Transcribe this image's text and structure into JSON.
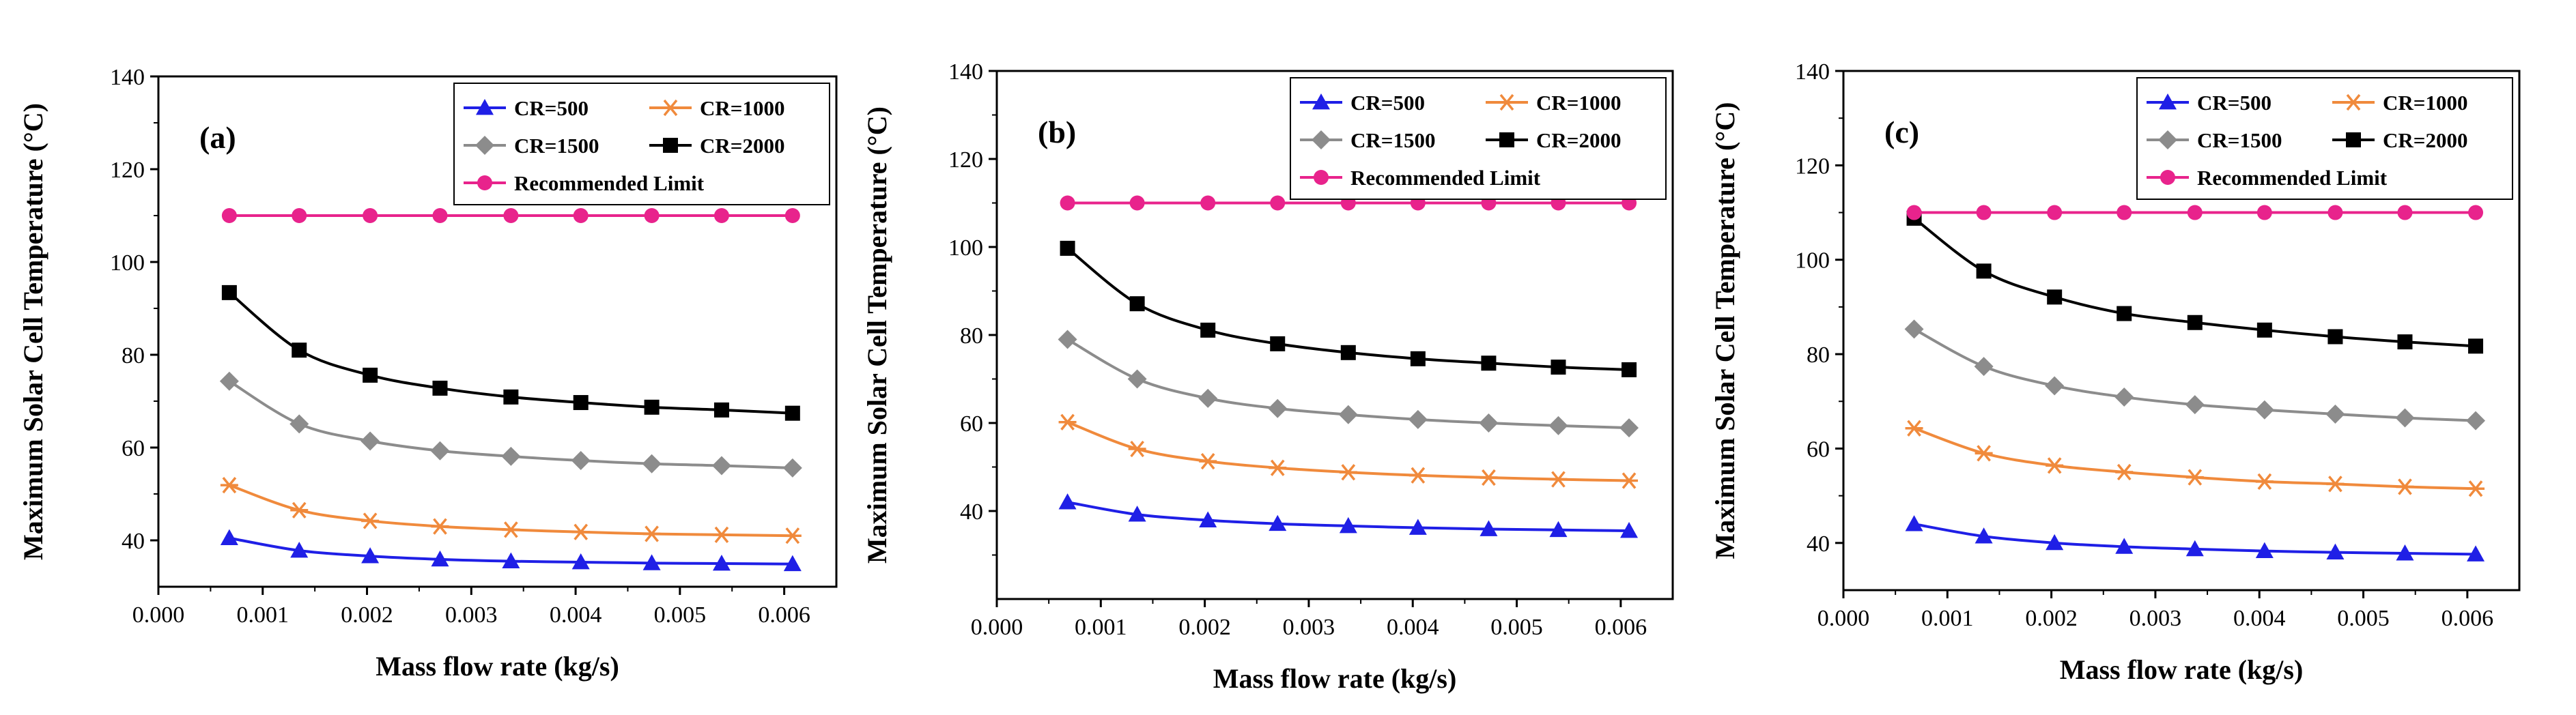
{
  "chart_data": [
    {
      "type": "line",
      "panel_label": "(a)",
      "xlabel": "Mass flow rate (kg/s)",
      "ylabel": "Maximum Solar Cell Temperature (°C)",
      "xlim": [
        0.0,
        0.0065
      ],
      "ylim": [
        30,
        140
      ],
      "xticks": [
        "0.000",
        "0.001",
        "0.002",
        "0.003",
        "0.004",
        "0.005",
        "0.006"
      ],
      "yticks": [
        "40",
        "60",
        "80",
        "100",
        "120",
        "140"
      ],
      "legend_position": "top-right",
      "x": [
        0.00068,
        0.00135,
        0.00203,
        0.0027,
        0.00338,
        0.00405,
        0.00473,
        0.0054,
        0.00608
      ],
      "series": [
        {
          "name": "CR=500",
          "color": "#1f1fe6",
          "marker": "triangle",
          "values": [
            40.5,
            37.8,
            36.6,
            35.9,
            35.5,
            35.3,
            35.1,
            35.0,
            34.9
          ]
        },
        {
          "name": "CR=1000",
          "color": "#f08a3c",
          "marker": "asterisk",
          "values": [
            51.9,
            46.5,
            44.2,
            43.0,
            42.3,
            41.8,
            41.4,
            41.2,
            41.0
          ]
        },
        {
          "name": "CR=1500",
          "color": "#8c8c8c",
          "marker": "diamond",
          "values": [
            74.3,
            65.1,
            61.4,
            59.3,
            58.1,
            57.2,
            56.5,
            56.1,
            55.6
          ]
        },
        {
          "name": "CR=2000",
          "color": "#000000",
          "marker": "square",
          "values": [
            93.4,
            81.0,
            75.6,
            72.8,
            70.9,
            69.7,
            68.7,
            68.1,
            67.4
          ]
        },
        {
          "name": "Recommended Limit",
          "color": "#e8238c",
          "marker": "circle",
          "values": [
            110,
            110,
            110,
            110,
            110,
            110,
            110,
            110,
            110
          ]
        }
      ]
    },
    {
      "type": "line",
      "panel_label": "(b)",
      "xlabel": "Mass flow rate (kg/s)",
      "ylabel": "Maximum Solar Cell Temperature (°C)",
      "xlim": [
        0.0,
        0.0065
      ],
      "ylim": [
        20,
        140
      ],
      "xticks": [
        "0.000",
        "0.001",
        "0.002",
        "0.003",
        "0.004",
        "0.005",
        "0.006"
      ],
      "yticks": [
        "40",
        "60",
        "80",
        "100",
        "120",
        "140"
      ],
      "legend_position": "top-right",
      "x": [
        0.00068,
        0.00135,
        0.00203,
        0.0027,
        0.00338,
        0.00405,
        0.00473,
        0.0054,
        0.00608
      ],
      "series": [
        {
          "name": "CR=500",
          "color": "#1f1fe6",
          "marker": "triangle",
          "values": [
            42.0,
            39.2,
            37.9,
            37.1,
            36.6,
            36.2,
            35.9,
            35.7,
            35.5
          ]
        },
        {
          "name": "CR=1000",
          "color": "#f08a3c",
          "marker": "asterisk",
          "values": [
            60.2,
            54.1,
            51.3,
            49.8,
            48.8,
            48.1,
            47.6,
            47.2,
            46.9
          ]
        },
        {
          "name": "CR=1500",
          "color": "#8c8c8c",
          "marker": "diamond",
          "values": [
            79.0,
            70.0,
            65.6,
            63.3,
            61.9,
            60.8,
            60.0,
            59.4,
            58.9
          ]
        },
        {
          "name": "CR=2000",
          "color": "#000000",
          "marker": "square",
          "values": [
            99.7,
            87.1,
            81.1,
            78.0,
            76.0,
            74.6,
            73.6,
            72.7,
            72.1
          ]
        },
        {
          "name": "Recommended Limit",
          "color": "#e8238c",
          "marker": "circle",
          "values": [
            110,
            110,
            110,
            110,
            110,
            110,
            110,
            110,
            110
          ]
        }
      ]
    },
    {
      "type": "line",
      "panel_label": "(c)",
      "xlabel": "Mass flow rate (kg/s)",
      "ylabel": "Maximum Solar Cell Temperature (°C)",
      "xlim": [
        0.0,
        0.0065
      ],
      "ylim": [
        30,
        140
      ],
      "xticks": [
        "0.000",
        "0.001",
        "0.002",
        "0.003",
        "0.004",
        "0.005",
        "0.006"
      ],
      "yticks": [
        "40",
        "60",
        "80",
        "100",
        "120",
        "140"
      ],
      "legend_position": "top-right",
      "x": [
        0.00068,
        0.00135,
        0.00203,
        0.0027,
        0.00338,
        0.00405,
        0.00473,
        0.0054,
        0.00608
      ],
      "series": [
        {
          "name": "CR=500",
          "color": "#1f1fe6",
          "marker": "triangle",
          "values": [
            44.0,
            41.4,
            40.0,
            39.2,
            38.7,
            38.3,
            38.0,
            37.8,
            37.6
          ]
        },
        {
          "name": "CR=1000",
          "color": "#f08a3c",
          "marker": "asterisk",
          "values": [
            64.3,
            59.0,
            56.4,
            55.0,
            53.9,
            53.0,
            52.5,
            51.9,
            51.5
          ]
        },
        {
          "name": "CR=1500",
          "color": "#8c8c8c",
          "marker": "diamond",
          "values": [
            85.3,
            77.4,
            73.3,
            70.9,
            69.3,
            68.2,
            67.3,
            66.5,
            65.9
          ]
        },
        {
          "name": "CR=2000",
          "color": "#000000",
          "marker": "square",
          "values": [
            108.8,
            97.6,
            92.1,
            88.6,
            86.7,
            85.1,
            83.7,
            82.6,
            81.7
          ]
        },
        {
          "name": "Recommended Limit",
          "color": "#e8238c",
          "marker": "circle",
          "values": [
            110,
            110,
            110,
            110,
            110,
            110,
            110,
            110,
            110
          ]
        }
      ]
    }
  ]
}
